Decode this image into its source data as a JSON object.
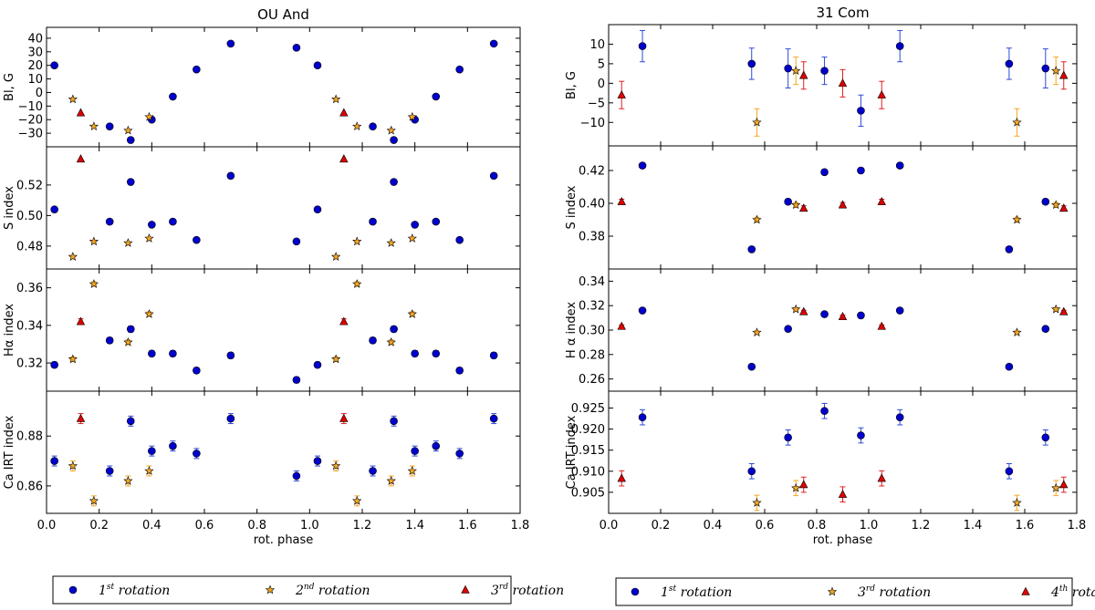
{
  "chart_data": [
    {
      "type": "scatter",
      "title": "OU And",
      "xlabel": "rot. phase",
      "xlim": [
        0.0,
        1.8
      ],
      "xticks": [
        "0.0",
        "0.2",
        "0.4",
        "0.6",
        "0.8",
        "1.0",
        "1.2",
        "1.4",
        "1.6",
        "1.8"
      ],
      "legend": {
        "placement": "bottom",
        "entries": [
          {
            "series": "r1",
            "base": "1",
            "sup": "st",
            "text": " rotation"
          },
          {
            "series": "r2",
            "base": "2",
            "sup": "nd",
            "text": " rotation"
          },
          {
            "series": "r3",
            "base": "3",
            "sup": "rd",
            "text": " rotation"
          }
        ]
      },
      "panels": [
        {
          "ylabel": "Bl, G",
          "ylim": [
            -40,
            48
          ],
          "yticks": [
            -30,
            -20,
            -10,
            0,
            10,
            20,
            30,
            40
          ],
          "yticklabels": [
            "−30",
            "−20",
            "−10",
            "0",
            "10",
            "20",
            "30",
            "40"
          ],
          "series": [
            {
              "name": "r1",
              "x": [
                0.03,
                0.24,
                0.32,
                0.4,
                0.48,
                0.57,
                0.7,
                0.95,
                1.03,
                1.24,
                1.32,
                1.4,
                1.48,
                1.57,
                1.7
              ],
              "y": [
                20,
                -25,
                -35,
                -20,
                -3,
                17,
                36,
                33,
                20,
                -25,
                -35,
                -20,
                -3,
                17,
                36
              ]
            },
            {
              "name": "r2",
              "x": [
                0.1,
                0.18,
                0.31,
                0.39,
                1.1,
                1.18,
                1.31,
                1.39
              ],
              "y": [
                -5,
                -25,
                -28,
                -18,
                -5,
                -25,
                -28,
                -18
              ]
            },
            {
              "name": "r3",
              "x": [
                0.13,
                1.13
              ],
              "y": [
                -15,
                -15
              ]
            }
          ]
        },
        {
          "ylabel": "S index",
          "ylim": [
            0.465,
            0.545
          ],
          "yticks": [
            0.48,
            0.5,
            0.52
          ],
          "yticklabels": [
            "0.48",
            "0.50",
            "0.52"
          ],
          "series": [
            {
              "name": "r1",
              "x": [
                0.03,
                0.24,
                0.32,
                0.4,
                0.48,
                0.57,
                0.7,
                0.95,
                1.03,
                1.24,
                1.32,
                1.4,
                1.48,
                1.57,
                1.7
              ],
              "y": [
                0.504,
                0.496,
                0.522,
                0.494,
                0.496,
                0.484,
                0.526,
                0.483,
                0.504,
                0.496,
                0.522,
                0.494,
                0.496,
                0.484,
                0.526
              ]
            },
            {
              "name": "r2",
              "x": [
                0.1,
                0.18,
                0.31,
                0.39,
                1.1,
                1.18,
                1.31,
                1.39
              ],
              "y": [
                0.473,
                0.483,
                0.482,
                0.485,
                0.473,
                0.483,
                0.482,
                0.485
              ]
            },
            {
              "name": "r3",
              "x": [
                0.13,
                1.13
              ],
              "y": [
                0.537,
                0.537
              ]
            }
          ]
        },
        {
          "ylabel": "Hα index",
          "ylim": [
            0.305,
            0.37
          ],
          "yticks": [
            0.32,
            0.34,
            0.36
          ],
          "yticklabels": [
            "0.32",
            "0.34",
            "0.36"
          ],
          "series": [
            {
              "name": "r1",
              "x": [
                0.03,
                0.24,
                0.32,
                0.4,
                0.48,
                0.57,
                0.7,
                0.95,
                1.03,
                1.24,
                1.32,
                1.4,
                1.48,
                1.57,
                1.7
              ],
              "y": [
                0.319,
                0.332,
                0.338,
                0.325,
                0.325,
                0.316,
                0.324,
                0.311,
                0.319,
                0.332,
                0.338,
                0.325,
                0.325,
                0.316,
                0.324
              ],
              "err": 0.0015
            },
            {
              "name": "r2",
              "x": [
                0.1,
                0.18,
                0.31,
                0.39,
                1.1,
                1.18,
                1.31,
                1.39
              ],
              "y": [
                0.322,
                0.362,
                0.331,
                0.346,
                0.322,
                0.362,
                0.331,
                0.346
              ],
              "err": 0.0012
            },
            {
              "name": "r3",
              "x": [
                0.13,
                1.13
              ],
              "y": [
                0.342,
                0.342
              ],
              "err": 0.0015
            }
          ]
        },
        {
          "ylabel": "Ca IRT index",
          "ylim": [
            0.849,
            0.898
          ],
          "yticks": [
            0.86,
            0.88
          ],
          "yticklabels": [
            "0.86",
            "0.88"
          ],
          "series": [
            {
              "name": "r1",
              "x": [
                0.03,
                0.24,
                0.32,
                0.4,
                0.48,
                0.57,
                0.7,
                0.95,
                1.03,
                1.24,
                1.32,
                1.4,
                1.48,
                1.57,
                1.7
              ],
              "y": [
                0.87,
                0.866,
                0.886,
                0.874,
                0.876,
                0.873,
                0.887,
                0.864,
                0.87,
                0.866,
                0.886,
                0.874,
                0.876,
                0.873,
                0.887
              ],
              "err": 0.002
            },
            {
              "name": "r2",
              "x": [
                0.1,
                0.18,
                0.31,
                0.39,
                1.1,
                1.18,
                1.31,
                1.39
              ],
              "y": [
                0.868,
                0.854,
                0.862,
                0.866,
                0.868,
                0.854,
                0.862,
                0.866
              ],
              "err": 0.002
            },
            {
              "name": "r3",
              "x": [
                0.13,
                1.13
              ],
              "y": [
                0.887,
                0.887
              ],
              "err": 0.002
            }
          ]
        }
      ]
    },
    {
      "type": "scatter",
      "title": "31 Com",
      "xlabel": "rot. phase",
      "xlim": [
        0.0,
        1.8
      ],
      "xticks": [
        "0.0",
        "0.2",
        "0.4",
        "0.6",
        "0.8",
        "1.0",
        "1.2",
        "1.4",
        "1.6",
        "1.8"
      ],
      "legend": {
        "placement": "bottom",
        "entries": [
          {
            "series": "r1",
            "base": "1",
            "sup": "st",
            "text": " rotation"
          },
          {
            "series": "r2",
            "base": "3",
            "sup": "rd",
            "text": " rotation"
          },
          {
            "series": "r3",
            "base": "4",
            "sup": "th",
            "text": " rotation"
          }
        ]
      },
      "panels": [
        {
          "ylabel": "Bl, G",
          "ylim": [
            -16,
            15
          ],
          "yticks": [
            -10,
            -5,
            0,
            5,
            10
          ],
          "yticklabels": [
            "−10",
            "−5",
            "0",
            "5",
            "10"
          ],
          "series": [
            {
              "name": "r1",
              "x": [
                0.13,
                0.55,
                0.69,
                0.83,
                0.97,
                1.12,
                1.54,
                1.68
              ],
              "y": [
                9.5,
                5,
                3.8,
                3.2,
                -7,
                9.5,
                5,
                3.8
              ],
              "err": [
                4,
                4,
                5,
                3.5,
                4,
                4,
                4,
                5
              ]
            },
            {
              "name": "r2",
              "x": [
                0.57,
                0.72,
                1.57,
                1.72
              ],
              "y": [
                -10,
                3.2,
                -10,
                3.2
              ],
              "err": [
                3.5,
                3.5,
                3.5,
                3.5
              ]
            },
            {
              "name": "r3",
              "x": [
                0.05,
                0.75,
                0.9,
                1.05,
                1.75
              ],
              "y": [
                -3,
                2,
                0,
                -3,
                2
              ],
              "err": [
                3.5,
                3.5,
                3.5,
                3.5,
                3.5
              ]
            }
          ]
        },
        {
          "ylabel": "S index",
          "ylim": [
            0.36,
            0.435
          ],
          "yticks": [
            0.38,
            0.4,
            0.42
          ],
          "yticklabels": [
            "0.38",
            "0.40",
            "0.42"
          ],
          "series": [
            {
              "name": "r1",
              "x": [
                0.13,
                0.55,
                0.69,
                0.83,
                0.97,
                1.12,
                1.54,
                1.68
              ],
              "y": [
                0.423,
                0.372,
                0.401,
                0.419,
                0.42,
                0.423,
                0.372,
                0.401
              ],
              "err": 0.0015
            },
            {
              "name": "r2",
              "x": [
                0.57,
                0.72,
                1.57,
                1.72
              ],
              "y": [
                0.39,
                0.399,
                0.39,
                0.399
              ],
              "err": 0.0015
            },
            {
              "name": "r3",
              "x": [
                0.05,
                0.75,
                0.9,
                1.05,
                1.75
              ],
              "y": [
                0.401,
                0.397,
                0.399,
                0.401,
                0.397
              ],
              "err": 0.0015
            }
          ]
        },
        {
          "ylabel": "H α index",
          "ylim": [
            0.25,
            0.35
          ],
          "yticks": [
            0.26,
            0.28,
            0.3,
            0.32,
            0.34
          ],
          "yticklabels": [
            "0.26",
            "0.28",
            "0.30",
            "0.32",
            "0.34"
          ],
          "series": [
            {
              "name": "r1",
              "x": [
                0.13,
                0.55,
                0.69,
                0.83,
                0.97,
                1.12,
                1.54,
                1.68
              ],
              "y": [
                0.316,
                0.27,
                0.301,
                0.313,
                0.312,
                0.316,
                0.27,
                0.301
              ],
              "err": 0.0012
            },
            {
              "name": "r2",
              "x": [
                0.57,
                0.72,
                1.57,
                1.72
              ],
              "y": [
                0.298,
                0.317,
                0.298,
                0.317
              ],
              "err": 0.0012
            },
            {
              "name": "r3",
              "x": [
                0.05,
                0.75,
                0.9,
                1.05,
                1.75
              ],
              "y": [
                0.303,
                0.315,
                0.311,
                0.303,
                0.315
              ],
              "err": 0.0012
            }
          ]
        },
        {
          "ylabel": "Ca IRT index",
          "ylim": [
            0.9,
            0.929
          ],
          "yticks": [
            0.905,
            0.91,
            0.915,
            0.92,
            0.925
          ],
          "yticklabels": [
            "0.905",
            "0.910",
            "0.915",
            "0.920",
            "0.925"
          ],
          "series": [
            {
              "name": "r1",
              "x": [
                0.13,
                0.55,
                0.69,
                0.83,
                0.97,
                1.12,
                1.54,
                1.68
              ],
              "y": [
                0.9228,
                0.91,
                0.918,
                0.9243,
                0.9185,
                0.9228,
                0.91,
                0.918
              ],
              "err": 0.0018
            },
            {
              "name": "r2",
              "x": [
                0.57,
                0.72,
                1.57,
                1.72
              ],
              "y": [
                0.9025,
                0.906,
                0.9025,
                0.906
              ],
              "err": 0.0018
            },
            {
              "name": "r3",
              "x": [
                0.05,
                0.75,
                0.9,
                1.05,
                1.75
              ],
              "y": [
                0.9083,
                0.9068,
                0.9045,
                0.9083,
                0.9068
              ],
              "err": 0.0018
            }
          ]
        }
      ]
    }
  ],
  "colors": {
    "r1": "#0000cc",
    "r1_err": "#2d4bd6",
    "r2_fill": "#f5a623",
    "r2_err": "#f5a623",
    "r3": "#e00000",
    "r3_err": "#e02020",
    "axis": "#000000"
  }
}
